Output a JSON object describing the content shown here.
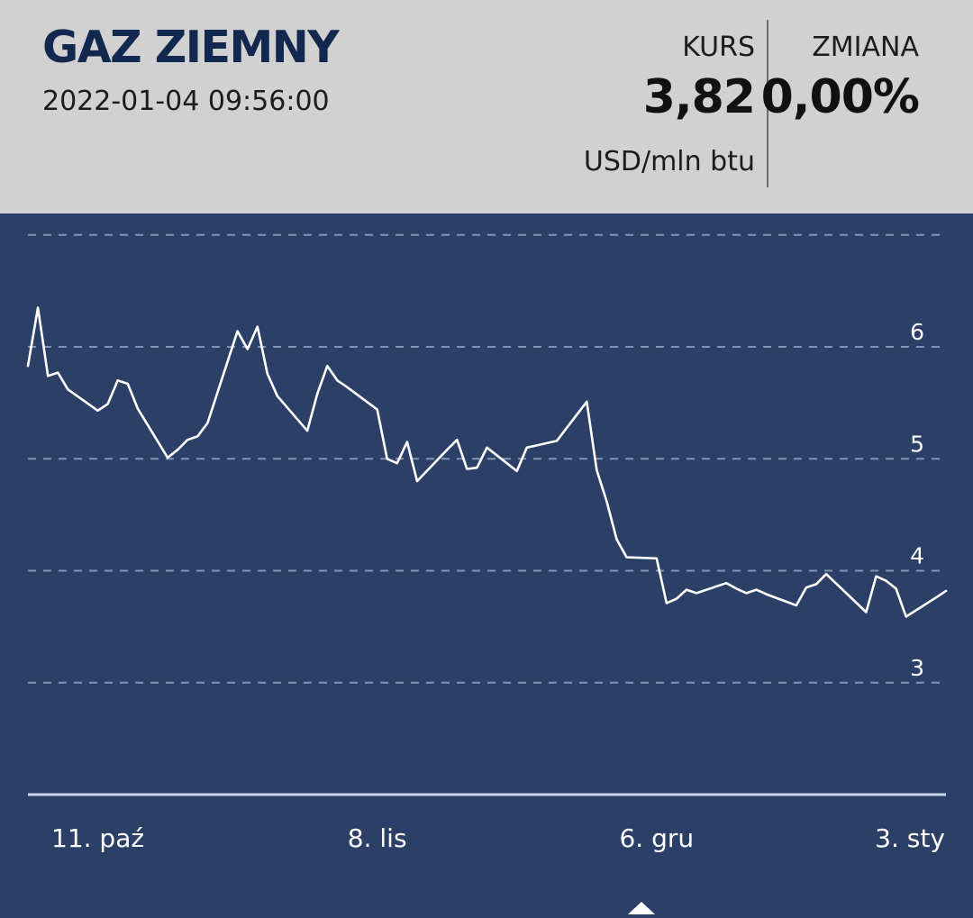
{
  "header": {
    "title": "GAZ ZIEMNY",
    "timestamp": "2022-01-04 09:56:00",
    "kurs_label": "KURS",
    "kurs_value": "3,82",
    "unit": "USD/mln btu",
    "zmiana_label": "ZMIANA",
    "zmiana_value": "0,00%"
  },
  "colors": {
    "chart_background": "#2c3f66",
    "header_background": "#d1d1d1",
    "line": "#ffffff",
    "grid": "#8593b0",
    "title": "#13284f"
  },
  "chart_data": {
    "type": "line",
    "title": "",
    "xlabel": "",
    "ylabel": "",
    "ylim": [
      2,
      6.95
    ],
    "yticks": [
      3,
      4,
      5,
      6
    ],
    "ytick_labels": [
      "3",
      "4",
      "5",
      "6"
    ],
    "grid": true,
    "xticks": [
      {
        "x": "2021-10-11",
        "label": "11. paź"
      },
      {
        "x": "2021-11-08",
        "label": "8. lis"
      },
      {
        "x": "2021-12-06",
        "label": "6. gru"
      },
      {
        "x": "2022-01-03",
        "label": "3. sty"
      }
    ],
    "x": [
      "2021-10-04",
      "2021-10-05",
      "2021-10-06",
      "2021-10-07",
      "2021-10-08",
      "2021-10-11",
      "2021-10-12",
      "2021-10-13",
      "2021-10-14",
      "2021-10-15",
      "2021-10-18",
      "2021-10-19",
      "2021-10-20",
      "2021-10-21",
      "2021-10-22",
      "2021-10-25",
      "2021-10-26",
      "2021-10-27",
      "2021-10-28",
      "2021-10-29",
      "2021-11-01",
      "2021-11-02",
      "2021-11-03",
      "2021-11-04",
      "2021-11-05",
      "2021-11-08",
      "2021-11-09",
      "2021-11-10",
      "2021-11-11",
      "2021-11-12",
      "2021-11-15",
      "2021-11-16",
      "2021-11-17",
      "2021-11-18",
      "2021-11-19",
      "2021-11-22",
      "2021-11-23",
      "2021-11-24",
      "2021-11-26",
      "2021-11-29",
      "2021-11-30",
      "2021-12-01",
      "2021-12-02",
      "2021-12-03",
      "2021-12-06",
      "2021-12-07",
      "2021-12-08",
      "2021-12-09",
      "2021-12-10",
      "2021-12-13",
      "2021-12-14",
      "2021-12-15",
      "2021-12-16",
      "2021-12-17",
      "2021-12-20",
      "2021-12-21",
      "2021-12-22",
      "2021-12-23",
      "2021-12-27",
      "2021-12-28",
      "2021-12-29",
      "2021-12-30",
      "2021-12-31",
      "2022-01-03",
      "2022-01-04"
    ],
    "series": [
      {
        "values": [
          5.83,
          6.35,
          5.74,
          5.77,
          5.62,
          5.43,
          5.49,
          5.7,
          5.67,
          5.45,
          5.01,
          5.08,
          5.17,
          5.2,
          5.32,
          6.14,
          5.98,
          6.18,
          5.76,
          5.56,
          5.25,
          5.58,
          5.83,
          5.7,
          5.64,
          5.44,
          5.0,
          4.96,
          5.15,
          4.8,
          5.08,
          5.17,
          4.91,
          4.92,
          5.1,
          4.89,
          5.1,
          5.12,
          5.16,
          5.51,
          4.9,
          4.62,
          4.28,
          4.12,
          4.11,
          3.71,
          3.75,
          3.83,
          3.8,
          3.89,
          3.84,
          3.8,
          3.83,
          3.79,
          3.69,
          3.85,
          3.88,
          3.97,
          3.63,
          3.95,
          3.91,
          3.84,
          3.59,
          3.76,
          3.82
        ]
      }
    ]
  }
}
